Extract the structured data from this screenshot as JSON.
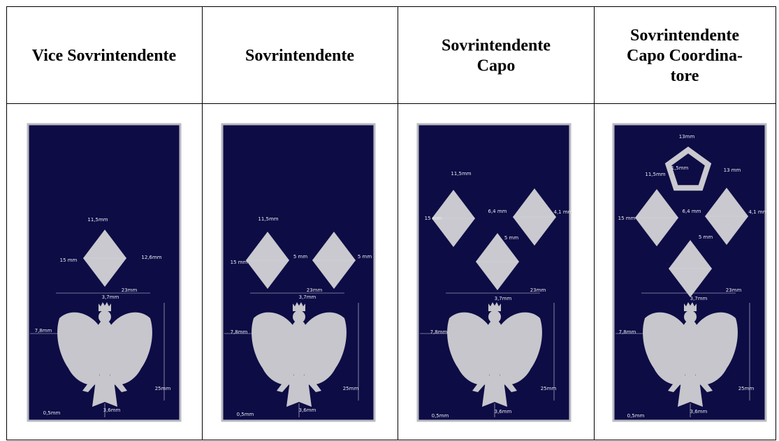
{
  "table": {
    "headers": [
      [
        "Vice Sovrintendente"
      ],
      [
        "Sovrintendente"
      ],
      [
        "Sovrintendente",
        "Capo"
      ],
      [
        "Sovrintendente",
        "Capo Coordina-",
        "tore"
      ]
    ],
    "boards": [
      {
        "labels": [
          "11,5mm",
          "15 mm",
          "12,6mm",
          "23mm",
          "3,7mm",
          "7,8mm",
          "25mm",
          "3,6mm",
          "0,5mm"
        ]
      },
      {
        "labels": [
          "11,5mm",
          "15 mm",
          "5 mm",
          "5 mm",
          "23mm",
          "3,7mm",
          "7,8mm",
          "25mm",
          "3,6mm",
          "0,5mm"
        ]
      },
      {
        "labels": [
          "11,5mm",
          "15 mm",
          "6,4 mm",
          "4,1 mm",
          "5 mm",
          "23mm",
          "3,7mm",
          "7,8mm",
          "25mm",
          "3,6mm",
          "0,5mm"
        ]
      },
      {
        "labels": [
          "13mm",
          "1,5mm",
          "13 mm",
          "11,5mm",
          "15 mm",
          "6,4 mm",
          "4,1 mm",
          "5 mm",
          "23mm",
          "3,7mm",
          "7,8mm",
          "25mm",
          "3,6mm",
          "0,5mm"
        ]
      }
    ]
  }
}
